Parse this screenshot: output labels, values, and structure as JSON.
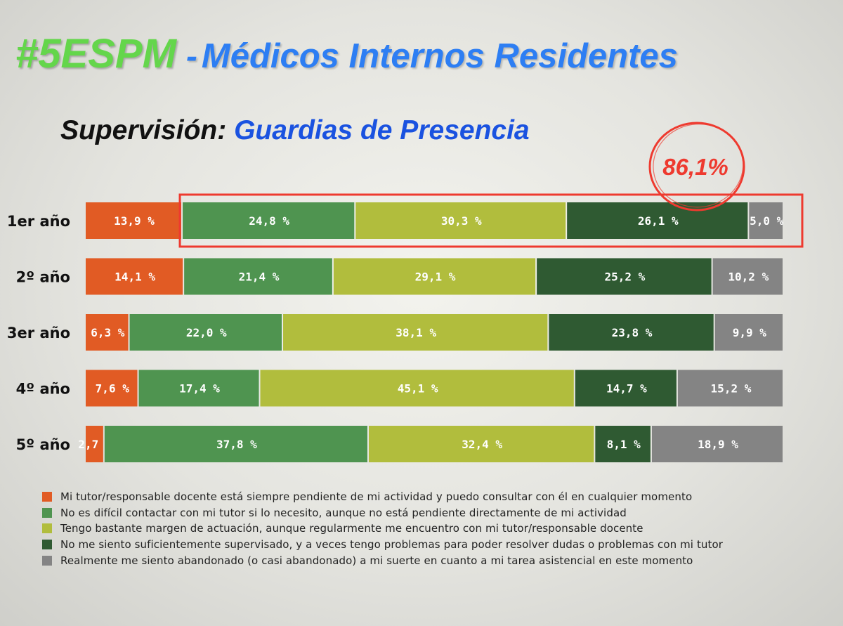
{
  "header": {
    "hashtag": "#5ESPM",
    "dash": "-",
    "title": "Médicos Internos Residentes",
    "subtitle_prefix": "Supervisión:",
    "subtitle_main": "Guardias de Presencia"
  },
  "chart_data": {
    "type": "bar",
    "orientation": "horizontal",
    "stacked": true,
    "normalized": true,
    "title": "Supervisión: Guardias de Presencia",
    "categories": [
      "1er año",
      "2º año",
      "3er año",
      "4º año",
      "5º año"
    ],
    "series": [
      {
        "name": "Mi tutor/responsable docente está siempre pendiente de mi actividad y puedo consultar con él en cualquier momento",
        "color": "#e15b24",
        "values": [
          13.9,
          14.1,
          6.3,
          7.6,
          2.7
        ],
        "labels": [
          "13,9 %",
          "14,1 %",
          "6,3 %",
          "7,6 %",
          "2,7 %"
        ]
      },
      {
        "name": "No es difícil contactar con mi tutor si lo necesito, aunque no está pendiente directamente de mi actividad",
        "color": "#4f9450",
        "values": [
          24.8,
          21.4,
          22.0,
          17.4,
          37.8
        ],
        "labels": [
          "24,8 %",
          "21,4 %",
          "22,0 %",
          "17,4 %",
          "37,8 %"
        ]
      },
      {
        "name": "Tengo bastante margen de actuación, aunque regularmente me encuentro con mi tutor/responsable docente",
        "color": "#b1bd3d",
        "values": [
          30.3,
          29.1,
          38.1,
          45.1,
          32.4
        ],
        "labels": [
          "30,3 %",
          "29,1 %",
          "38,1 %",
          "45,1 %",
          "32,4 %"
        ]
      },
      {
        "name": "No me siento suficientemente supervisado, y a veces tengo problemas para poder resolver dudas o problemas con mi tutor",
        "color": "#2f5a32",
        "values": [
          26.1,
          25.2,
          23.8,
          14.7,
          8.1
        ],
        "labels": [
          "26,1 %",
          "25,2 %",
          "23,8 %",
          "14,7 %",
          "8,1 %"
        ]
      },
      {
        "name": "Realmente me siento abandonado (o casi abandonado) a mi suerte en cuanto a mi tarea asistencial en este momento",
        "color": "#848484",
        "values": [
          5.0,
          10.2,
          9.9,
          15.2,
          18.9
        ],
        "labels": [
          "5,0 %",
          "10,2 %",
          "9,9 %",
          "15,2 %",
          "18,9 %"
        ]
      }
    ],
    "xlim": [
      0,
      100
    ],
    "legend_position": "bottom",
    "annotation": {
      "text": "86,1%",
      "category": "1er año",
      "highlight_series": [
        1,
        2,
        3,
        4
      ],
      "color": "#ee3a2f"
    }
  }
}
